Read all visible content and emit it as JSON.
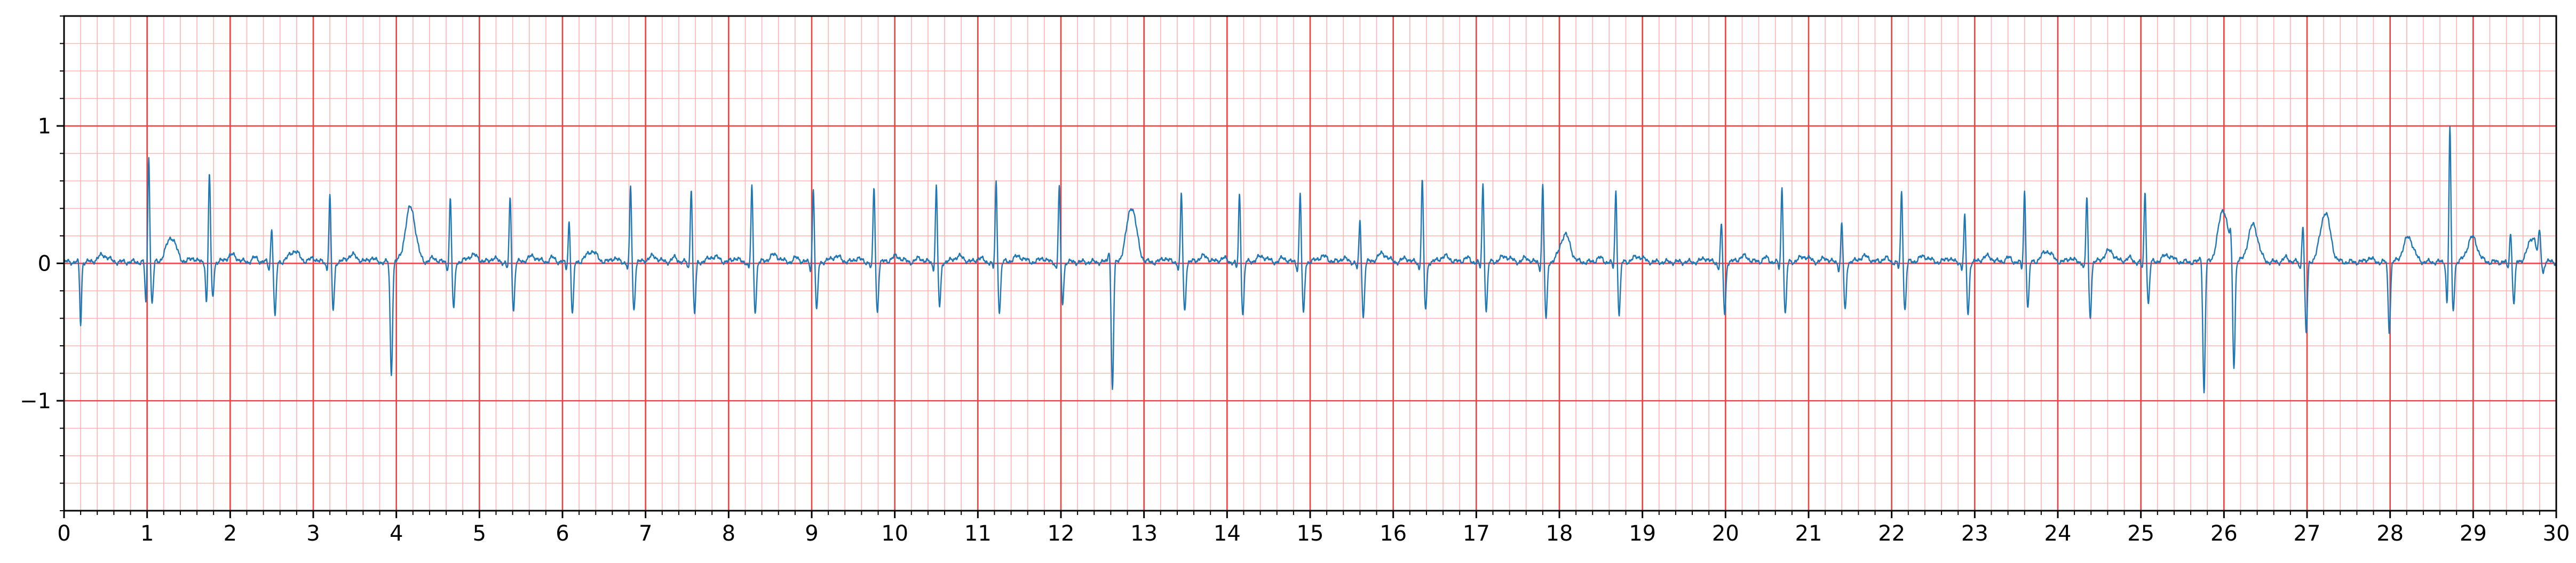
{
  "chart_data": {
    "type": "line",
    "title": "",
    "xlabel": "",
    "ylabel": "",
    "xlim": [
      0,
      30
    ],
    "ylim": [
      -1.8,
      1.8
    ],
    "grid": true,
    "legend": "none",
    "colors": {
      "trace": "#1f77b4",
      "grid_major": "#f04040",
      "grid_minor": "#ffb3b3",
      "axes": "#000000"
    },
    "x_ticks": [
      0,
      1,
      2,
      3,
      4,
      5,
      6,
      7,
      8,
      9,
      10,
      11,
      12,
      13,
      14,
      15,
      16,
      17,
      18,
      19,
      20,
      21,
      22,
      23,
      24,
      25,
      26,
      27,
      28,
      29,
      30
    ],
    "x_tick_labels": [
      "0",
      "1",
      "2",
      "3",
      "4",
      "5",
      "6",
      "7",
      "8",
      "9",
      "10",
      "11",
      "12",
      "13",
      "14",
      "15",
      "16",
      "17",
      "18",
      "19",
      "20",
      "21",
      "22",
      "23",
      "24",
      "25",
      "26",
      "27",
      "28",
      "29",
      "30"
    ],
    "y_ticks": [
      -1,
      0,
      1
    ],
    "y_tick_labels": [
      "−1",
      "0",
      "1"
    ],
    "major_grid_x_step": 1,
    "minor_grid_x_step": 0.2,
    "major_grid_y_step": 1,
    "minor_grid_y_step": 0.2,
    "series": [
      {
        "beats": [
          {
            "t": 0.2,
            "r": -0.45,
            "q": 0.0,
            "s": 0.0,
            "tw": 0.05,
            "pw": 0.0
          },
          {
            "t": 1.02,
            "r": 0.78,
            "q": -0.3,
            "s": -0.3,
            "tw": 0.18,
            "pw": 0.0
          },
          {
            "t": 1.75,
            "r": 0.65,
            "q": -0.3,
            "s": -0.25,
            "tw": 0.05,
            "pw": 0.03
          },
          {
            "t": 2.5,
            "r": 0.25,
            "q": -0.05,
            "s": -0.4,
            "tw": 0.08,
            "pw": 0.03
          },
          {
            "t": 3.2,
            "r": 0.48,
            "q": -0.05,
            "s": -0.35,
            "tw": 0.05,
            "pw": 0.03
          },
          {
            "t": 3.9,
            "r": 0.0,
            "q": 0.0,
            "s": -0.82,
            "tw": 0.4,
            "pw": 0.03
          },
          {
            "t": 4.65,
            "r": 0.47,
            "q": -0.05,
            "s": -0.35,
            "tw": 0.05,
            "pw": 0.03
          },
          {
            "t": 5.37,
            "r": 0.47,
            "q": -0.05,
            "s": -0.35,
            "tw": 0.04,
            "pw": 0.03
          },
          {
            "t": 6.08,
            "r": 0.3,
            "q": -0.05,
            "s": -0.38,
            "tw": 0.08,
            "pw": 0.03
          },
          {
            "t": 6.82,
            "r": 0.55,
            "q": -0.05,
            "s": -0.35,
            "tw": 0.04,
            "pw": 0.03
          },
          {
            "t": 7.55,
            "r": 0.55,
            "q": -0.05,
            "s": -0.38,
            "tw": 0.04,
            "pw": 0.03
          },
          {
            "t": 8.28,
            "r": 0.55,
            "q": -0.05,
            "s": -0.36,
            "tw": 0.05,
            "pw": 0.03
          },
          {
            "t": 9.02,
            "r": 0.53,
            "q": -0.05,
            "s": -0.36,
            "tw": 0.04,
            "pw": 0.03
          },
          {
            "t": 9.75,
            "r": 0.55,
            "q": -0.05,
            "s": -0.36,
            "tw": 0.04,
            "pw": 0.03
          },
          {
            "t": 10.5,
            "r": 0.55,
            "q": -0.05,
            "s": -0.33,
            "tw": 0.04,
            "pw": 0.03
          },
          {
            "t": 11.22,
            "r": 0.58,
            "q": -0.05,
            "s": -0.36,
            "tw": 0.04,
            "pw": 0.03
          },
          {
            "t": 11.98,
            "r": 0.55,
            "q": -0.05,
            "s": -0.3,
            "tw": 0.0,
            "pw": 0.03
          },
          {
            "t": 12.58,
            "r": 0.1,
            "q": 0.0,
            "s": -0.92,
            "tw": 0.4,
            "pw": 0.0
          },
          {
            "t": 13.45,
            "r": 0.5,
            "q": -0.05,
            "s": -0.36,
            "tw": 0.04,
            "pw": 0.03
          },
          {
            "t": 14.15,
            "r": 0.5,
            "q": -0.05,
            "s": -0.38,
            "tw": 0.04,
            "pw": 0.03
          },
          {
            "t": 14.88,
            "r": 0.5,
            "q": -0.05,
            "s": -0.38,
            "tw": 0.04,
            "pw": 0.03
          },
          {
            "t": 15.6,
            "r": 0.3,
            "q": -0.05,
            "s": -0.4,
            "tw": 0.06,
            "pw": 0.03
          },
          {
            "t": 16.35,
            "r": 0.6,
            "q": -0.05,
            "s": -0.35,
            "tw": 0.04,
            "pw": 0.03
          },
          {
            "t": 17.08,
            "r": 0.57,
            "q": -0.05,
            "s": -0.35,
            "tw": 0.04,
            "pw": 0.03
          },
          {
            "t": 17.8,
            "r": 0.56,
            "q": -0.05,
            "s": -0.42,
            "tw": 0.2,
            "pw": 0.03
          },
          {
            "t": 18.68,
            "r": 0.52,
            "q": -0.05,
            "s": -0.38,
            "tw": 0.04,
            "pw": 0.03
          },
          {
            "t": 19.95,
            "r": 0.27,
            "q": -0.05,
            "s": -0.38,
            "tw": 0.04,
            "pw": 0.03
          },
          {
            "t": 20.68,
            "r": 0.55,
            "q": -0.05,
            "s": -0.38,
            "tw": 0.04,
            "pw": 0.03
          },
          {
            "t": 21.4,
            "r": 0.28,
            "q": -0.05,
            "s": -0.36,
            "tw": 0.04,
            "pw": 0.03
          },
          {
            "t": 22.12,
            "r": 0.52,
            "q": -0.05,
            "s": -0.35,
            "tw": 0.04,
            "pw": 0.03
          },
          {
            "t": 22.88,
            "r": 0.33,
            "q": -0.05,
            "s": -0.38,
            "tw": 0.04,
            "pw": 0.03
          },
          {
            "t": 23.6,
            "r": 0.52,
            "q": -0.05,
            "s": -0.33,
            "tw": 0.08,
            "pw": 0.03
          },
          {
            "t": 24.35,
            "r": 0.48,
            "q": -0.05,
            "s": -0.4,
            "tw": 0.08,
            "pw": 0.03
          },
          {
            "t": 25.05,
            "r": 0.52,
            "q": -0.05,
            "s": -0.3,
            "tw": 0.05,
            "pw": 0.03
          },
          {
            "t": 25.72,
            "r": 0.05,
            "q": 0.0,
            "s": -0.95,
            "tw": 0.38,
            "pw": 0.0
          },
          {
            "t": 26.08,
            "r": 0.1,
            "q": 0.0,
            "s": -0.8,
            "tw": 0.27,
            "pw": 0.0
          },
          {
            "t": 26.95,
            "r": 0.28,
            "q": -0.05,
            "s": -0.52,
            "tw": 0.36,
            "pw": 0.03
          },
          {
            "t": 27.95,
            "r": 0.0,
            "q": 0.0,
            "s": -0.5,
            "tw": 0.18,
            "pw": 0.03
          },
          {
            "t": 28.72,
            "r": 0.98,
            "q": -0.3,
            "s": -0.35,
            "tw": 0.18,
            "pw": 0.0
          },
          {
            "t": 29.45,
            "r": 0.22,
            "q": -0.05,
            "s": -0.3,
            "tw": 0.18,
            "pw": 0.0
          },
          {
            "t": 29.8,
            "r": 0.15,
            "q": -0.05,
            "s": -0.1,
            "tw": 0.0,
            "pw": 0.0
          }
        ]
      }
    ]
  }
}
